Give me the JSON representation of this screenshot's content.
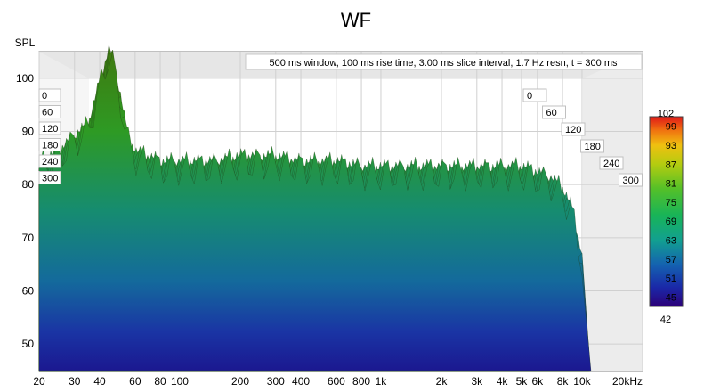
{
  "chart_data": {
    "type": "waterfall",
    "title": "WF",
    "ylabel": "SPL",
    "info": "500 ms window, 100 ms rise time, 3.00 ms slice interval, 1.7 Hz resn, t = 300 ms",
    "x_scale": "log",
    "x_range": [
      20,
      20000
    ],
    "x_ticks": [
      {
        "value": 20,
        "label": "20"
      },
      {
        "value": 30,
        "label": "30"
      },
      {
        "value": 40,
        "label": "40"
      },
      {
        "value": 60,
        "label": "60"
      },
      {
        "value": 80,
        "label": "80"
      },
      {
        "value": 100,
        "label": "100"
      },
      {
        "value": 200,
        "label": "200"
      },
      {
        "value": 300,
        "label": "300"
      },
      {
        "value": 400,
        "label": "400"
      },
      {
        "value": 600,
        "label": "600"
      },
      {
        "value": 800,
        "label": "800"
      },
      {
        "value": 1000,
        "label": "1k"
      },
      {
        "value": 2000,
        "label": "2k"
      },
      {
        "value": 3000,
        "label": "3k"
      },
      {
        "value": 4000,
        "label": "4k"
      },
      {
        "value": 5000,
        "label": "5k"
      },
      {
        "value": 6000,
        "label": "6k"
      },
      {
        "value": 8000,
        "label": "8k"
      },
      {
        "value": 10000,
        "label": "10k"
      },
      {
        "value": 20000,
        "label": "20kHz"
      }
    ],
    "y_range": [
      45,
      105
    ],
    "y_ticks": [
      50,
      60,
      70,
      80,
      90,
      100
    ],
    "time_ticks_ms": [
      "0",
      "60",
      "120",
      "180",
      "240",
      "300"
    ],
    "colorbar": {
      "range": [
        42,
        102
      ],
      "labels": [
        "102",
        "99",
        "93",
        "87",
        "81",
        "75",
        "69",
        "63",
        "57",
        "51",
        "45",
        "42"
      ]
    },
    "front_slice": {
      "name": "t = 0 ms",
      "x": [
        20,
        25,
        30,
        35,
        40,
        45,
        50,
        55,
        60,
        70,
        80,
        100,
        150,
        200,
        300,
        400,
        600,
        800,
        1000,
        1500,
        2000,
        3000,
        4000,
        5000,
        6000,
        7000,
        8000,
        9000,
        10000
      ],
      "y": [
        83,
        85,
        88,
        90,
        98,
        105,
        97,
        88,
        85,
        84,
        83,
        83,
        83,
        84,
        84,
        83,
        83,
        82,
        82,
        82,
        82,
        82,
        82,
        82,
        81,
        80,
        78,
        74,
        65
      ]
    }
  }
}
